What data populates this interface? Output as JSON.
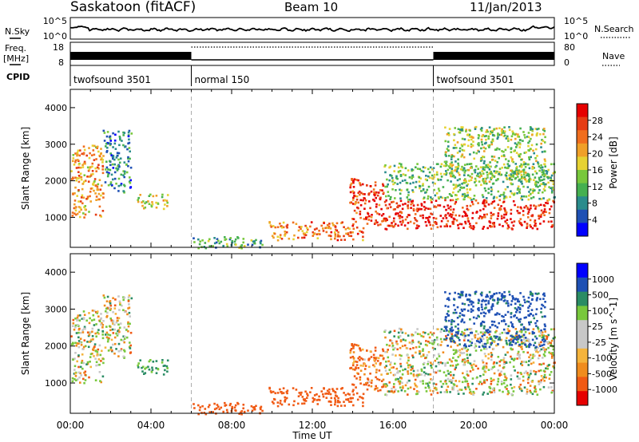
{
  "header": {
    "station": "Saskatoon (fitACF)",
    "beam": "Beam 10",
    "date": "11/Jan/2013"
  },
  "panels": {
    "nsky": {
      "label": "N.Sky",
      "ticks": [
        "10^5",
        "10^0"
      ],
      "right_label": "N.Search",
      "right_ticks": [
        "10^5",
        "10^0"
      ]
    },
    "freq": {
      "label_line1": "Freq.",
      "label_line2": "[MHz]",
      "ticks": [
        "18",
        "8"
      ],
      "right_label": "Nave",
      "right_ticks": [
        "80",
        "0"
      ]
    },
    "cpid": {
      "label": "CPID",
      "segments": [
        {
          "name": "twofsound 3501",
          "start_hour": 0,
          "end_hour": 6
        },
        {
          "name": "normal 150",
          "start_hour": 6,
          "end_hour": 18
        },
        {
          "name": "twofsound 3501",
          "start_hour": 18,
          "end_hour": 24
        }
      ]
    }
  },
  "chart_data": [
    {
      "type": "heatmap",
      "title": "",
      "xlabel": "Time UT",
      "ylabel": "Slant Range [km]",
      "x_ticks": [
        "00:00",
        "04:00",
        "08:00",
        "12:00",
        "16:00",
        "20:00",
        "00:00"
      ],
      "xlim_hours": [
        0,
        24
      ],
      "y_ticks": [
        1000,
        2000,
        3000,
        4000
      ],
      "ylim": [
        180,
        4500
      ],
      "colorbar": {
        "label": "Power [dB]",
        "ticks": [
          "4",
          "8",
          "12",
          "16",
          "20",
          "24",
          "28"
        ],
        "range": [
          0,
          30
        ],
        "colors": [
          "#0000ff",
          "#1e50b4",
          "#2a8c8c",
          "#45b050",
          "#78c83c",
          "#e6d232",
          "#f0a028",
          "#f06e1e",
          "#e63c14",
          "#e60000"
        ]
      },
      "regions": [
        {
          "t0": 0.0,
          "t1": 1.6,
          "r0": 1000,
          "r1": 3000,
          "db": 20
        },
        {
          "t0": 1.6,
          "t1": 3.0,
          "r0": 1700,
          "r1": 3400,
          "db": 8
        },
        {
          "t0": 3.2,
          "t1": 4.8,
          "r0": 1250,
          "r1": 1650,
          "db": 16
        },
        {
          "t0": 6.0,
          "t1": 9.5,
          "r0": 180,
          "r1": 500,
          "db": 10
        },
        {
          "t0": 9.8,
          "t1": 14.5,
          "r0": 400,
          "r1": 900,
          "db": 22
        },
        {
          "t0": 13.8,
          "t1": 15.5,
          "r0": 800,
          "r1": 2100,
          "db": 26
        },
        {
          "t0": 15.5,
          "t1": 24.0,
          "r0": 700,
          "r1": 1500,
          "db": 27
        },
        {
          "t0": 15.5,
          "t1": 24.0,
          "r0": 1500,
          "r1": 2500,
          "db": 12
        },
        {
          "t0": 18.5,
          "t1": 23.5,
          "r0": 2000,
          "r1": 3500,
          "db": 14
        }
      ]
    },
    {
      "type": "heatmap",
      "title": "",
      "xlabel": "Time UT",
      "ylabel": "Slant Range [km]",
      "x_ticks": [
        "00:00",
        "04:00",
        "08:00",
        "12:00",
        "16:00",
        "20:00",
        "00:00"
      ],
      "xlim_hours": [
        0,
        24
      ],
      "y_ticks": [
        1000,
        2000,
        3000,
        4000
      ],
      "ylim": [
        180,
        4500
      ],
      "colorbar": {
        "label": "Velocity [m s^-1]",
        "ticks": [
          "1000",
          "500",
          "100",
          "25",
          "-25",
          "-100",
          "-500",
          "-1000"
        ],
        "range": [
          -1000,
          1000
        ],
        "colors": [
          "#e60000",
          "#f05a14",
          "#f08c1e",
          "#f5b43c",
          "#c8c8c8",
          "#c8c8c8",
          "#78c83c",
          "#2a8c64",
          "#1e50b4",
          "#0000ff"
        ]
      },
      "regions": [
        {
          "t0": 0.0,
          "t1": 1.6,
          "r0": 1000,
          "r1": 3000,
          "vel": 0
        },
        {
          "t0": 1.6,
          "t1": 3.0,
          "r0": 1700,
          "r1": 3400,
          "vel": 0
        },
        {
          "t0": 3.2,
          "t1": 4.8,
          "r0": 1250,
          "r1": 1650,
          "vel": 150
        },
        {
          "t0": 6.0,
          "t1": 9.5,
          "r0": 180,
          "r1": 500,
          "vel": -300
        },
        {
          "t0": 9.8,
          "t1": 14.5,
          "r0": 400,
          "r1": 900,
          "vel": -300
        },
        {
          "t0": 13.8,
          "t1": 15.5,
          "r0": 800,
          "r1": 2100,
          "vel": -150
        },
        {
          "t0": 15.5,
          "t1": 24.0,
          "r0": 700,
          "r1": 1500,
          "vel": 0
        },
        {
          "t0": 15.5,
          "t1": 24.0,
          "r0": 1500,
          "r1": 2500,
          "vel": 0
        },
        {
          "t0": 18.5,
          "t1": 23.5,
          "r0": 2000,
          "r1": 3500,
          "vel": 400
        }
      ]
    }
  ]
}
